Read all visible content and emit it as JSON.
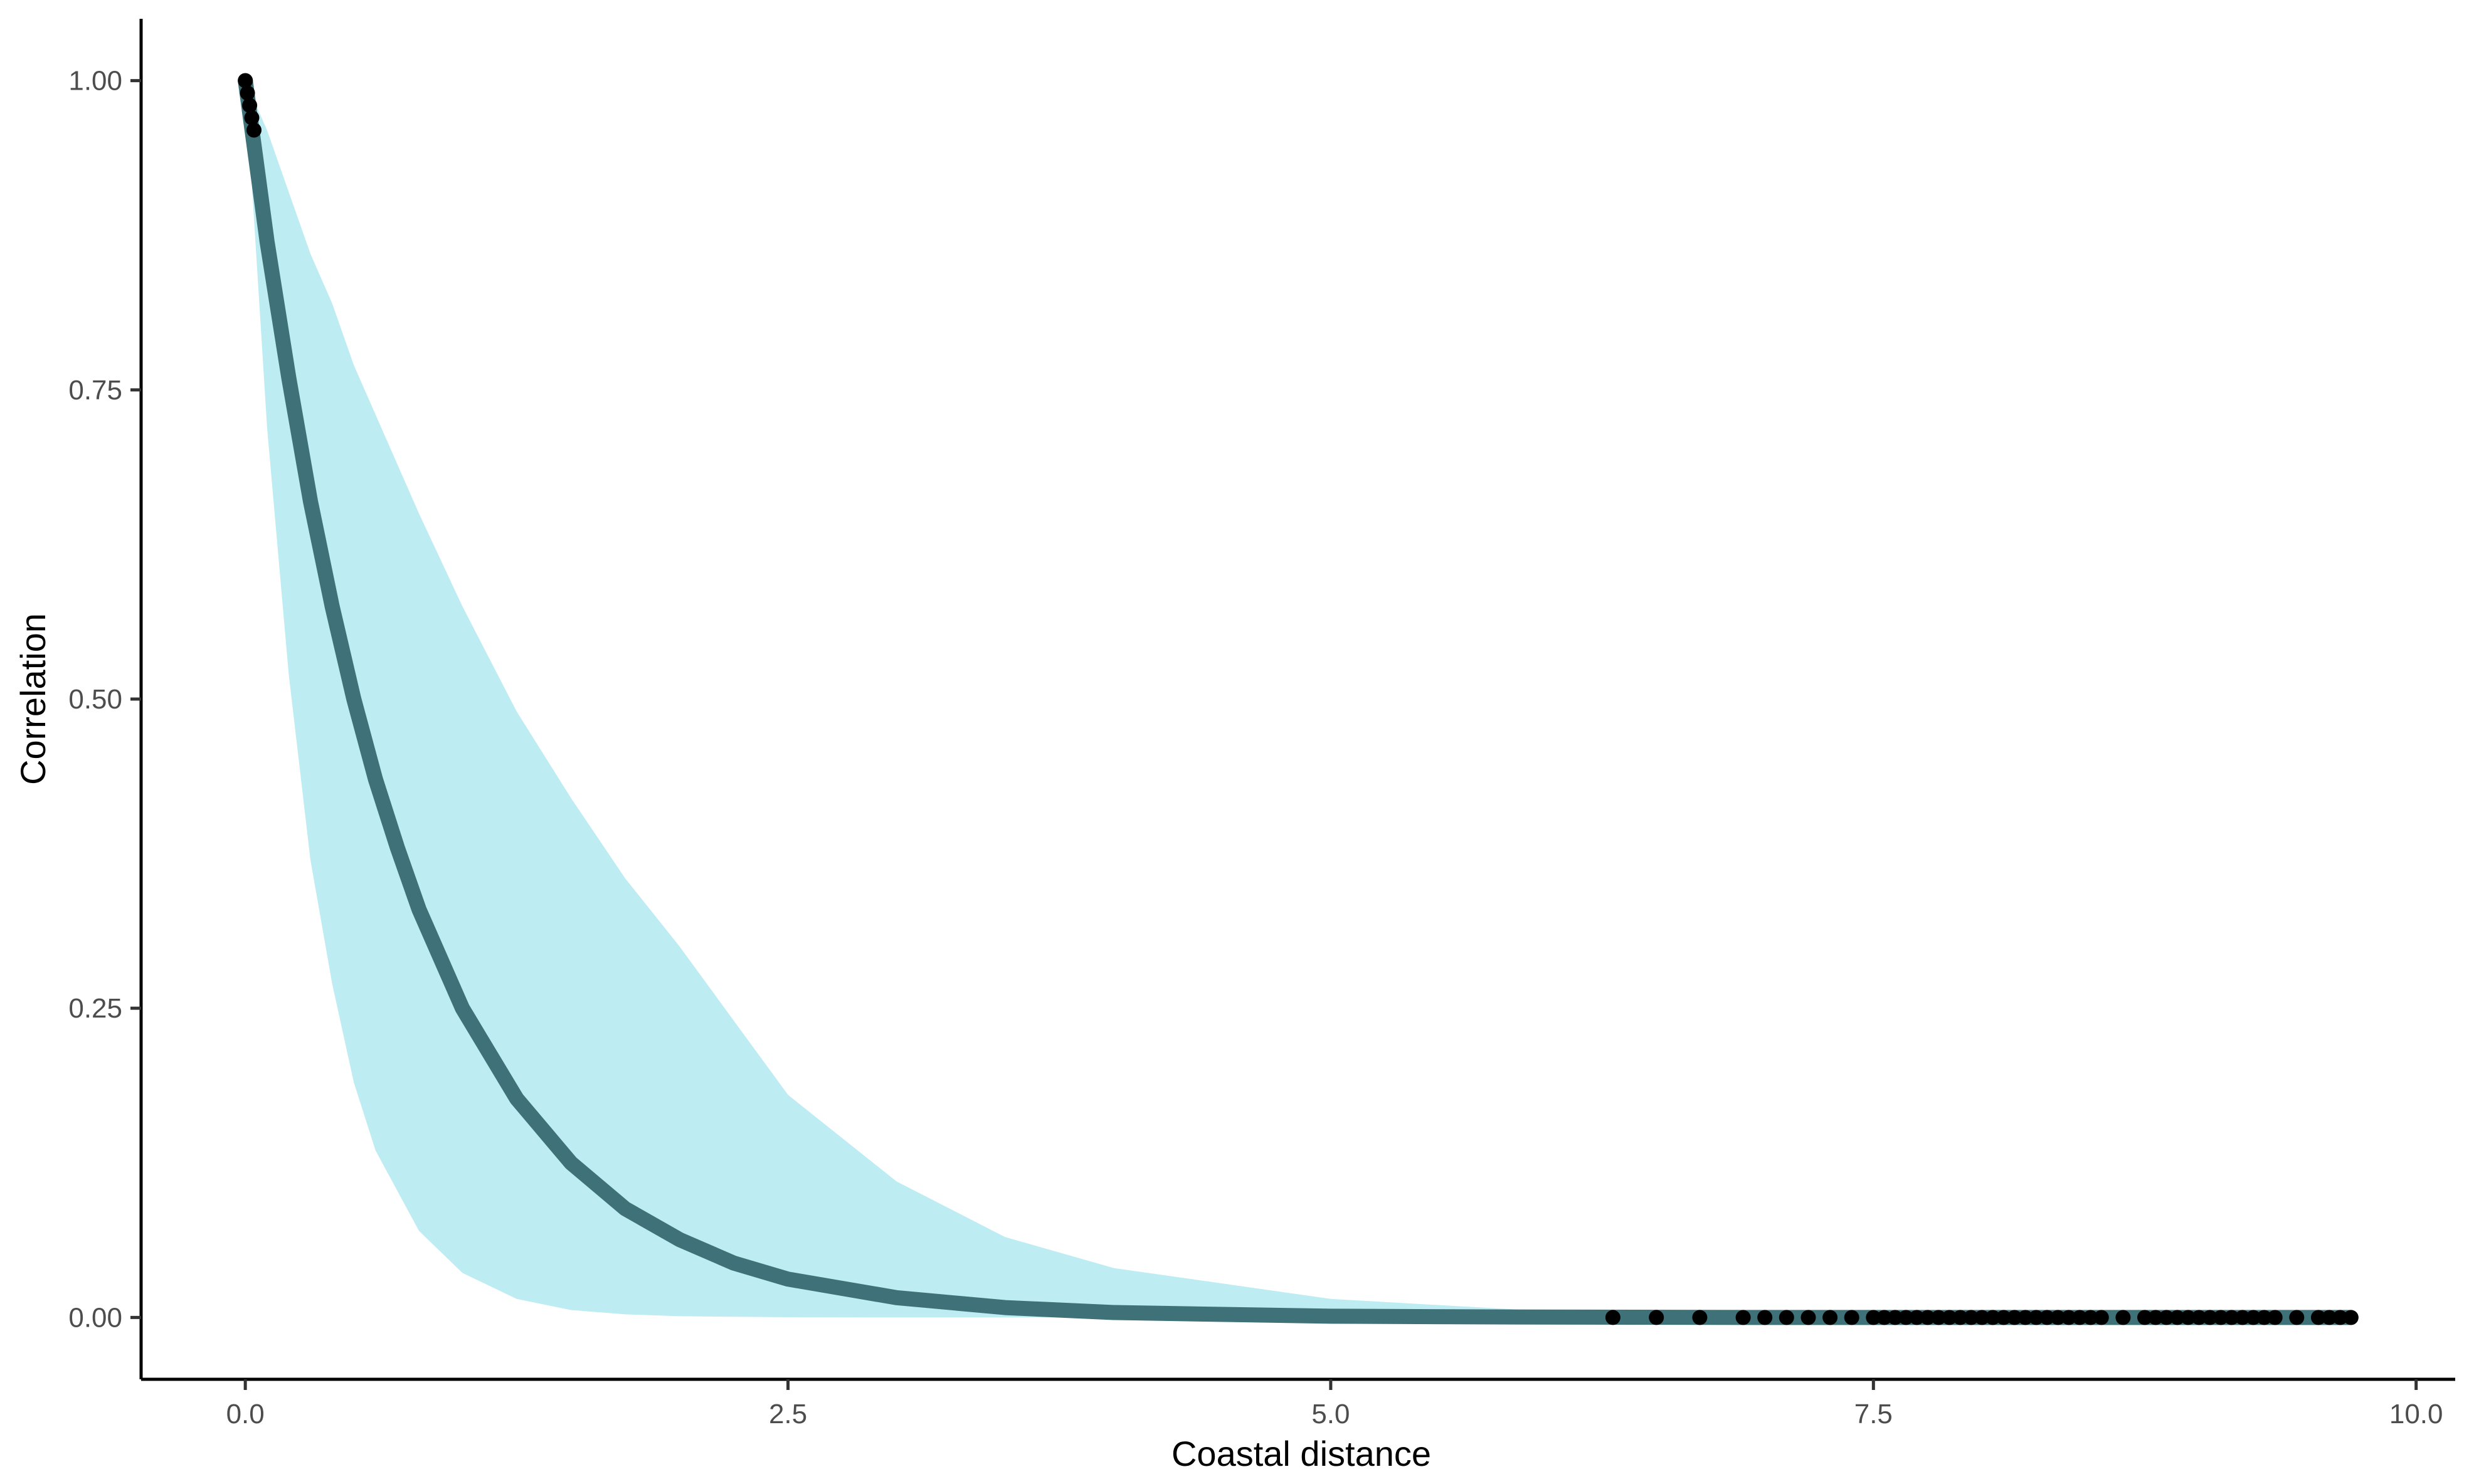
{
  "chart_data": {
    "type": "line",
    "title": "",
    "xlabel": "Coastal distance",
    "ylabel": "Correlation",
    "xlim": [
      -0.48,
      10.18
    ],
    "ylim": [
      -0.05,
      1.05
    ],
    "x_ticks": [
      {
        "value": 0.0,
        "label": "0.0"
      },
      {
        "value": 2.5,
        "label": "2.5"
      },
      {
        "value": 5.0,
        "label": "5.0"
      },
      {
        "value": 7.5,
        "label": "7.5"
      },
      {
        "value": 10.0,
        "label": "10.0"
      }
    ],
    "y_ticks": [
      {
        "value": 0.0,
        "label": "0.00"
      },
      {
        "value": 0.25,
        "label": "0.25"
      },
      {
        "value": 0.5,
        "label": "0.50"
      },
      {
        "value": 0.75,
        "label": "0.75"
      },
      {
        "value": 1.0,
        "label": "1.00"
      }
    ],
    "grid": false,
    "legend": "none",
    "colors": {
      "ribbon": "#bdecf2",
      "fit_line": "#3f7178",
      "points": "#000000",
      "axis": "#000000"
    },
    "series": [
      {
        "type": "ribbon",
        "x": [
          0.0,
          0.1,
          0.2,
          0.3,
          0.4,
          0.5,
          0.6,
          0.8,
          1.0,
          1.25,
          1.5,
          1.75,
          2.0,
          2.5,
          3.0,
          3.5,
          4.0,
          5.0,
          6.0,
          7.0,
          8.0,
          9.0,
          9.7
        ],
        "lower": [
          1.0,
          0.72,
          0.52,
          0.37,
          0.27,
          0.19,
          0.135,
          0.07,
          0.036,
          0.015,
          0.006,
          0.0025,
          0.001,
          0.0002,
          0.0,
          0.0,
          0.0,
          0.0,
          0.0,
          0.0,
          0.0,
          0.0,
          0.0
        ],
        "upper": [
          1.0,
          0.96,
          0.91,
          0.86,
          0.82,
          0.77,
          0.73,
          0.65,
          0.575,
          0.49,
          0.42,
          0.355,
          0.3,
          0.18,
          0.11,
          0.065,
          0.04,
          0.015,
          0.005,
          0.002,
          0.001,
          0.0,
          0.0
        ]
      },
      {
        "type": "line",
        "x": [
          0.0,
          0.1,
          0.2,
          0.3,
          0.4,
          0.5,
          0.6,
          0.7,
          0.8,
          1.0,
          1.25,
          1.5,
          1.75,
          2.0,
          2.25,
          2.5,
          3.0,
          3.5,
          4.0,
          5.0,
          6.0,
          7.0,
          8.0,
          9.0,
          9.7
        ],
        "values": [
          1.0,
          0.87,
          0.76,
          0.66,
          0.575,
          0.5,
          0.435,
          0.38,
          0.33,
          0.25,
          0.177,
          0.125,
          0.088,
          0.063,
          0.044,
          0.031,
          0.016,
          0.008,
          0.004,
          0.001,
          0.0003,
          0.0,
          0.0,
          0.0,
          0.0
        ]
      },
      {
        "type": "scatter",
        "x": [
          0.0,
          0.01,
          0.02,
          0.03,
          0.04,
          6.3,
          6.5,
          6.7,
          6.9,
          7.0,
          7.1,
          7.2,
          7.3,
          7.4,
          7.5,
          7.55,
          7.6,
          7.65,
          7.7,
          7.75,
          7.8,
          7.85,
          7.9,
          7.95,
          8.0,
          8.05,
          8.1,
          8.15,
          8.2,
          8.25,
          8.3,
          8.35,
          8.4,
          8.45,
          8.5,
          8.55,
          8.65,
          8.75,
          8.8,
          8.85,
          8.9,
          8.95,
          9.0,
          9.05,
          9.1,
          9.15,
          9.2,
          9.25,
          9.3,
          9.35,
          9.45,
          9.55,
          9.6,
          9.65,
          9.7
        ],
        "values": [
          1.0,
          0.99,
          0.98,
          0.97,
          0.96,
          0.0,
          0.0,
          0.0,
          0.0,
          0.0,
          0.0,
          0.0,
          0.0,
          0.0,
          0.0,
          0.0,
          0.0,
          0.0,
          0.0,
          0.0,
          0.0,
          0.0,
          0.0,
          0.0,
          0.0,
          0.0,
          0.0,
          0.0,
          0.0,
          0.0,
          0.0,
          0.0,
          0.0,
          0.0,
          0.0,
          0.0,
          0.0,
          0.0,
          0.0,
          0.0,
          0.0,
          0.0,
          0.0,
          0.0,
          0.0,
          0.0,
          0.0,
          0.0,
          0.0,
          0.0,
          0.0,
          0.0,
          0.0,
          0.0,
          0.0
        ]
      }
    ]
  }
}
